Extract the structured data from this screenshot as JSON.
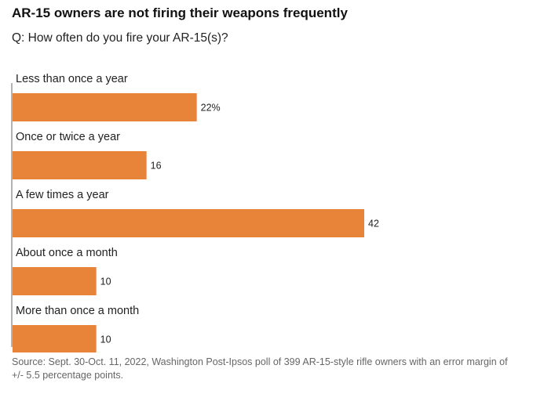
{
  "title": "AR-15 owners are not firing their weapons frequently",
  "subtitle": "Q: How often do you fire your AR-15(s)?",
  "source": "Source: Sept. 30-Oct. 11, 2022, Washington Post-Ipsos poll of 399 AR-15-style rifle owners with an error margin of +/- 5.5 percentage points.",
  "chart_data": {
    "type": "bar",
    "orientation": "horizontal",
    "categories": [
      "Less than once a year",
      "Once or twice a year",
      "A few times a year",
      "About once a month",
      "More than once a month"
    ],
    "values": [
      22,
      16,
      42,
      10,
      10
    ],
    "value_labels": [
      "22%",
      "16",
      "42",
      "10",
      "10"
    ],
    "bar_color": "#e8833a",
    "axis_color": "#999999",
    "xlim": [
      0,
      42
    ],
    "grid": false,
    "legend": "none"
  }
}
